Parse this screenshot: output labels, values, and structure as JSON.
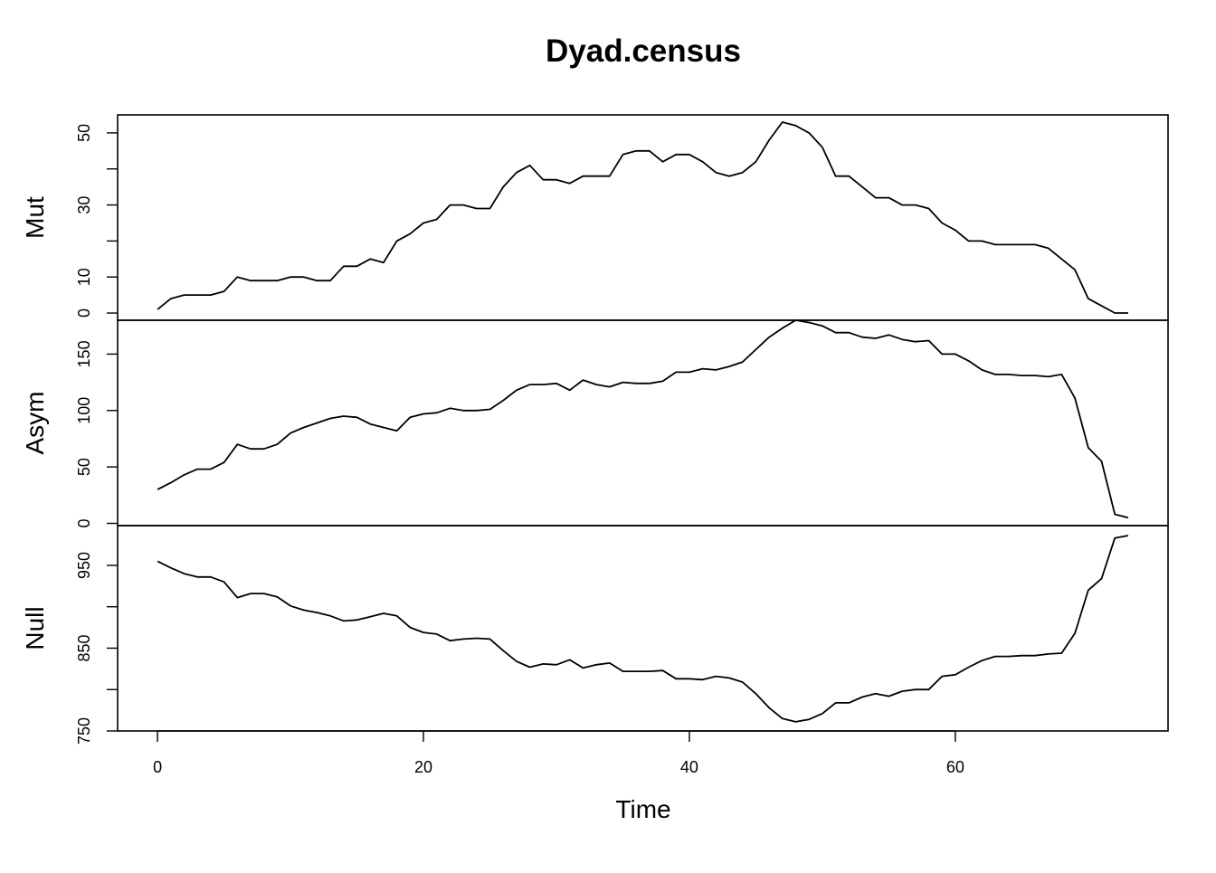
{
  "chart_data": {
    "type": "line",
    "title": "Dyad.census",
    "xlabel": "Time",
    "xlim": [
      -3,
      76
    ],
    "x_ticks": [
      0,
      20,
      40,
      60
    ],
    "x_start": 0,
    "grid": false,
    "series": [
      {
        "name": "Mut",
        "ylim": [
          -2,
          55
        ],
        "y_ticks": [
          0,
          10,
          20,
          30,
          40,
          50
        ],
        "y_tick_labels": [
          "0",
          "10",
          "",
          "30",
          "",
          "50"
        ],
        "values": [
          1,
          4,
          5,
          5,
          5,
          6,
          10,
          9,
          9,
          9,
          10,
          10,
          9,
          9,
          13,
          13,
          15,
          14,
          20,
          22,
          25,
          26,
          30,
          30,
          29,
          29,
          35,
          39,
          41,
          37,
          37,
          36,
          38,
          38,
          38,
          44,
          45,
          45,
          42,
          44,
          44,
          42,
          39,
          38,
          39,
          42,
          48,
          53,
          52,
          50,
          46,
          38,
          38,
          35,
          32,
          32,
          30,
          30,
          29,
          25,
          23,
          20,
          20,
          19,
          19,
          19,
          19,
          18,
          15,
          12,
          4,
          2,
          0,
          0
        ]
      },
      {
        "name": "Asym",
        "ylim": [
          -2,
          180
        ],
        "y_ticks": [
          0,
          50,
          100,
          150
        ],
        "y_tick_labels": [
          "0",
          "50",
          "100",
          "150"
        ],
        "values": [
          30,
          36,
          43,
          48,
          48,
          54,
          70,
          66,
          66,
          70,
          80,
          85,
          89,
          93,
          95,
          94,
          88,
          85,
          82,
          94,
          97,
          98,
          102,
          100,
          100,
          101,
          109,
          118,
          123,
          123,
          124,
          118,
          127,
          123,
          121,
          125,
          124,
          124,
          126,
          134,
          134,
          137,
          136,
          139,
          143,
          154,
          165,
          173,
          180,
          178,
          175,
          169,
          169,
          165,
          164,
          167,
          163,
          161,
          162,
          150,
          150,
          144,
          136,
          132,
          132,
          131,
          131,
          130,
          132,
          111,
          67,
          55,
          8,
          5
        ]
      },
      {
        "name": "Null",
        "ylim": [
          750,
          998
        ],
        "y_ticks": [
          750,
          800,
          850,
          900,
          950
        ],
        "y_tick_labels": [
          "750",
          "",
          "850",
          "",
          "950"
        ],
        "values": [
          955,
          947,
          940,
          936,
          936,
          930,
          911,
          916,
          916,
          912,
          901,
          896,
          893,
          889,
          883,
          884,
          888,
          892,
          889,
          875,
          869,
          867,
          859,
          861,
          862,
          861,
          847,
          834,
          827,
          831,
          830,
          836,
          826,
          830,
          832,
          822,
          822,
          822,
          823,
          813,
          813,
          812,
          816,
          814,
          809,
          795,
          778,
          765,
          761,
          764,
          771,
          784,
          784,
          791,
          795,
          792,
          798,
          800,
          800,
          816,
          818,
          827,
          835,
          840,
          840,
          841,
          841,
          843,
          844,
          868,
          920,
          934,
          983,
          986
        ]
      }
    ]
  }
}
